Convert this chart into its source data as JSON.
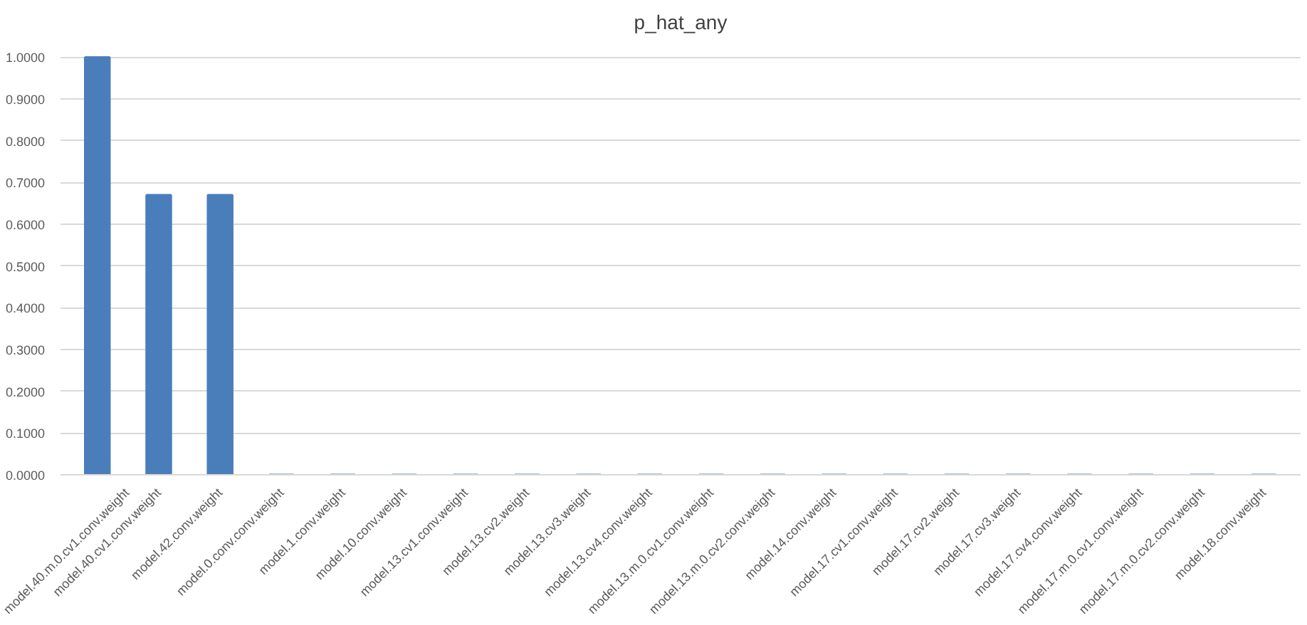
{
  "chart_data": {
    "type": "bar",
    "title": "p_hat_any",
    "categories": [
      "model.40.m.0.cv1.conv.weight",
      "model.40.cv1.conv.weight",
      "model.42.conv.weight",
      "model.0.conv.conv.weight",
      "model.1.conv.weight",
      "model.10.conv.weight",
      "model.13.cv1.conv.weight",
      "model.13.cv2.weight",
      "model.13.cv3.weight",
      "model.13.cv4.conv.weight",
      "model.13.m.0.cv1.conv.weight",
      "model.13.m.0.cv2.conv.weight",
      "model.14.conv.weight",
      "model.17.cv1.conv.weight",
      "model.17.cv2.weight",
      "model.17.cv3.weight",
      "model.17.cv4.conv.weight",
      "model.17.m.0.cv1.conv.weight",
      "model.17.m.0.cv2.conv.weight",
      "model.18.conv.weight"
    ],
    "values": [
      1.0,
      0.67,
      0.67,
      0,
      0,
      0,
      0,
      0,
      0,
      0,
      0,
      0,
      0,
      0,
      0,
      0,
      0,
      0,
      0,
      0
    ],
    "color": "#4a7ebb",
    "ylim": [
      0,
      1.0
    ],
    "yticks": [
      {
        "value": 0,
        "label": "0.0000"
      },
      {
        "value": 0.1,
        "label": "0.1000"
      },
      {
        "value": 0.2,
        "label": "0.2000"
      },
      {
        "value": 0.3,
        "label": "0.3000"
      },
      {
        "value": 0.4,
        "label": "0.4000"
      },
      {
        "value": 0.5,
        "label": "0.5000"
      },
      {
        "value": 0.6,
        "label": "0.6000"
      },
      {
        "value": 0.7,
        "label": "0.7000"
      },
      {
        "value": 0.8,
        "label": "0.8000"
      },
      {
        "value": 0.9,
        "label": "0.9000"
      },
      {
        "value": 1.0,
        "label": "1.0000"
      }
    ],
    "grid": "y"
  }
}
